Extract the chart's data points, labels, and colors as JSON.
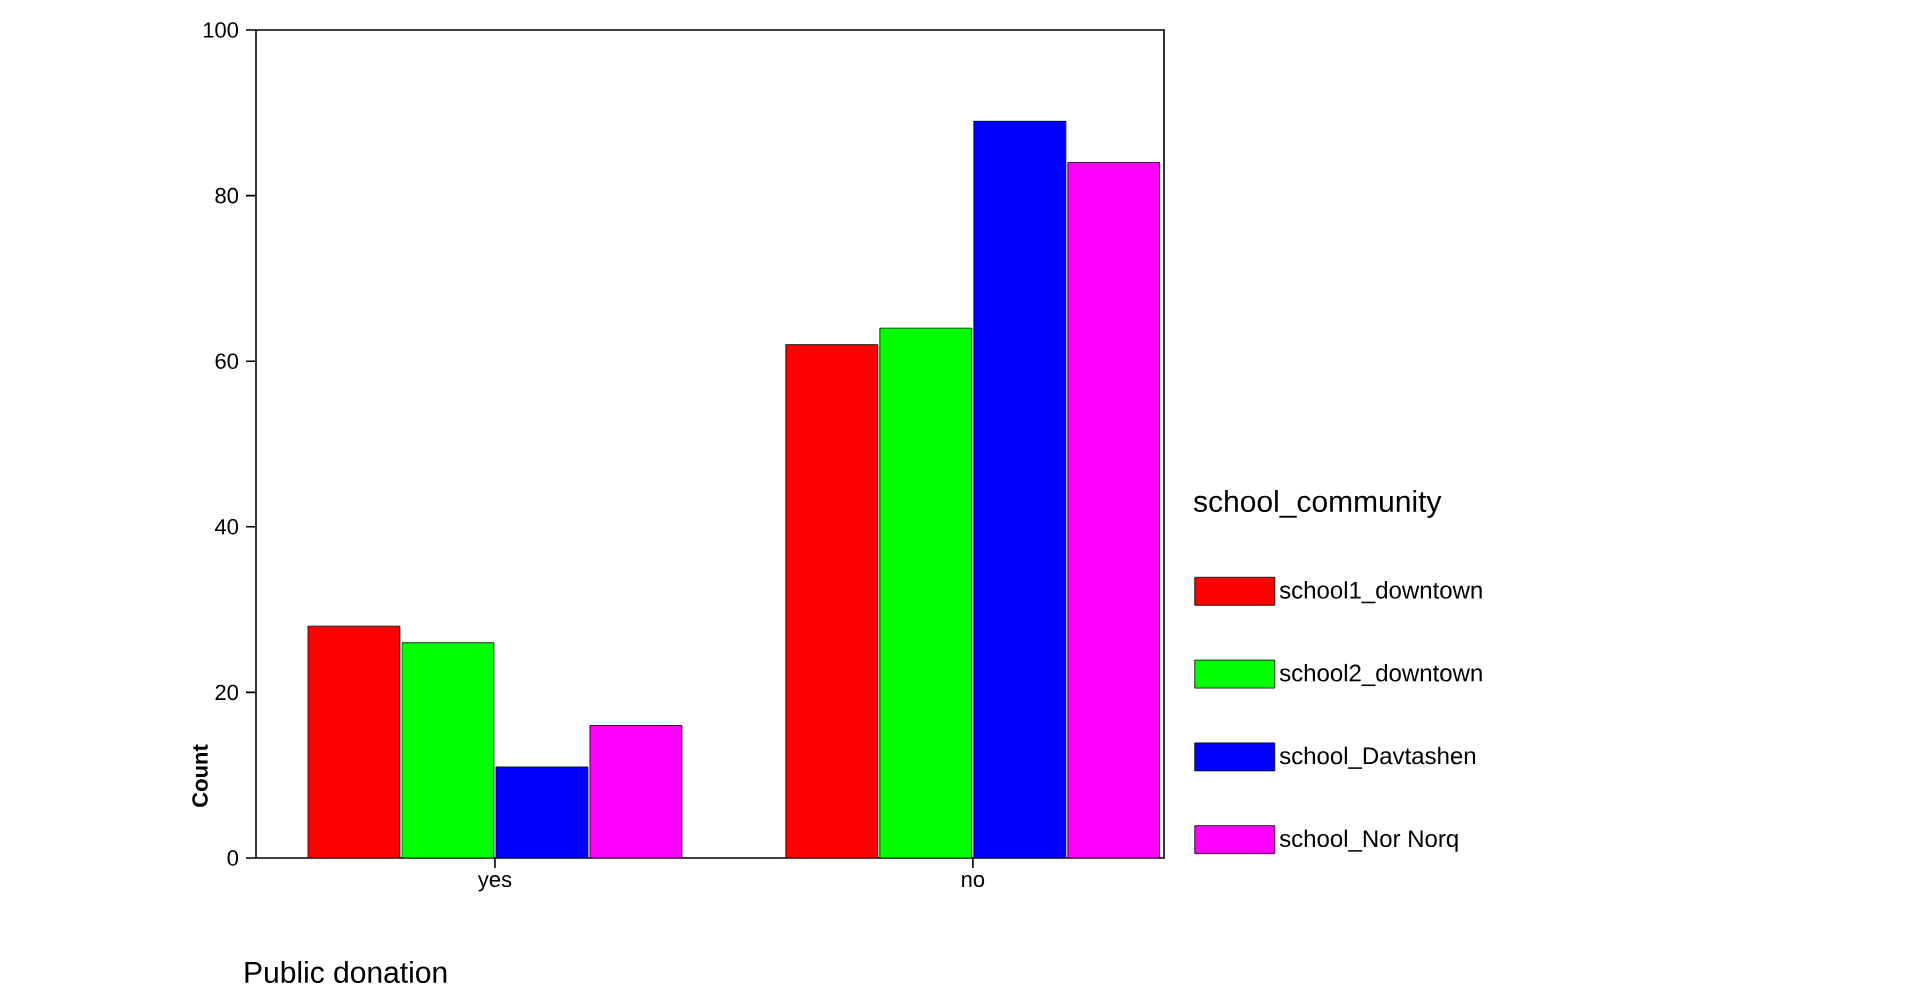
{
  "chart_data": {
    "type": "bar",
    "xlabel": "Public donation",
    "ylabel": "Count",
    "legend_title": "school_community",
    "categories": [
      "yes",
      "no"
    ],
    "ylim": [
      0,
      100
    ],
    "yticks": [
      0,
      20,
      40,
      60,
      80,
      100
    ],
    "legend": "right",
    "series": [
      {
        "name": "school1_downtown",
        "color": "#ff0000",
        "values": [
          28,
          62
        ]
      },
      {
        "name": "school2_downtown",
        "color": "#00ff00",
        "values": [
          26,
          64
        ]
      },
      {
        "name": "school_Davtashen",
        "color": "#0000ff",
        "values": [
          11,
          89
        ]
      },
      {
        "name": "school_Nor Norq",
        "color": "#ff00ff",
        "values": [
          16,
          84
        ]
      }
    ]
  }
}
